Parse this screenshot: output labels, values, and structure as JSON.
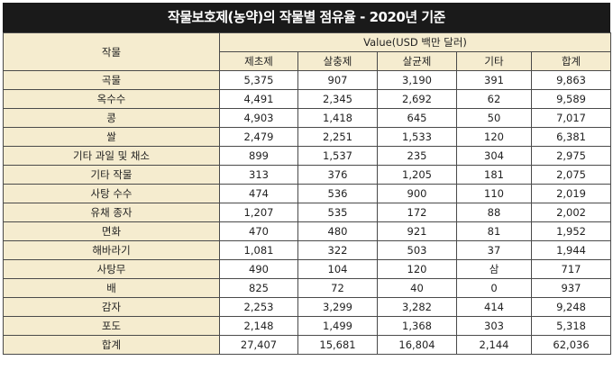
{
  "title": "작물보호제(농약)의 작물별 점유율  -  2020년 기준",
  "header": {
    "crop_label": "작물",
    "value_label": "Value(USD 백만 달러)",
    "columns": [
      "제초제",
      "살충제",
      "살균제",
      "기타",
      "합계"
    ]
  },
  "rows": [
    {
      "crop": "곡물",
      "values": [
        "5,375",
        "907",
        "3,190",
        "391",
        "9,863"
      ]
    },
    {
      "crop": "옥수수",
      "values": [
        "4,491",
        "2,345",
        "2,692",
        "62",
        "9,589"
      ]
    },
    {
      "crop": "콩",
      "values": [
        "4,903",
        "1,418",
        "645",
        "50",
        "7,017"
      ]
    },
    {
      "crop": "쌀",
      "values": [
        "2,479",
        "2,251",
        "1,533",
        "120",
        "6,381"
      ]
    },
    {
      "crop": "기타 과일 및 채소",
      "values": [
        "899",
        "1,537",
        "235",
        "304",
        "2,975"
      ]
    },
    {
      "crop": "기타 작물",
      "values": [
        "313",
        "376",
        "1,205",
        "181",
        "2,075"
      ]
    },
    {
      "crop": "사탕 수수",
      "values": [
        "474",
        "536",
        "900",
        "110",
        "2,019"
      ]
    },
    {
      "crop": "유채 종자",
      "values": [
        "1,207",
        "535",
        "172",
        "88",
        "2,002"
      ]
    },
    {
      "crop": "면화",
      "values": [
        "470",
        "480",
        "921",
        "81",
        "1,952"
      ]
    },
    {
      "crop": "해바라기",
      "values": [
        "1,081",
        "322",
        "503",
        "37",
        "1,944"
      ]
    },
    {
      "crop": "사탕무",
      "values": [
        "490",
        "104",
        "120",
        "삼",
        "717"
      ]
    },
    {
      "crop": "배",
      "values": [
        "825",
        "72",
        "40",
        "0",
        "937"
      ]
    },
    {
      "crop": "감자",
      "values": [
        "2,253",
        "3,299",
        "3,282",
        "414",
        "9,248"
      ]
    },
    {
      "crop": "포도",
      "values": [
        "2,148",
        "1,499",
        "1,368",
        "303",
        "5,318"
      ]
    },
    {
      "crop": "합계",
      "values": [
        "27,407",
        "15,681",
        "16,804",
        "2,144",
        "62,036"
      ]
    }
  ]
}
